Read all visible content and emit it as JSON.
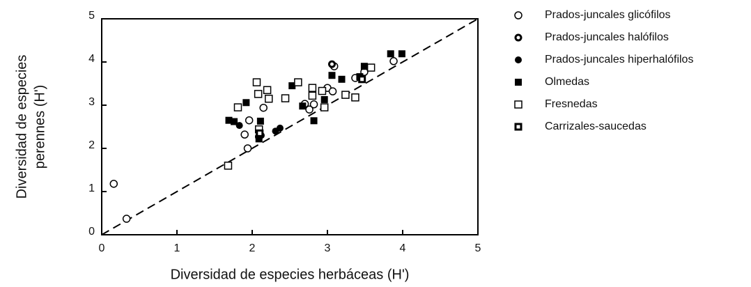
{
  "chart_data": {
    "type": "scatter",
    "xlabel": "Diversidad de especies herbáceas (H')",
    "ylabel": [
      "Diversidad de especies",
      "perennes (H')"
    ],
    "xlim": [
      0,
      5
    ],
    "ylim": [
      0,
      5
    ],
    "xticks": [
      0,
      1,
      2,
      3,
      4,
      5
    ],
    "yticks": [
      0,
      1,
      2,
      3,
      4,
      5
    ],
    "identity_line": true,
    "series": [
      {
        "name": "Prados-juncales glicófilos",
        "marker": "circle-open",
        "color": "#000",
        "x": [
          0.16,
          0.33,
          1.94,
          1.9,
          1.96,
          2.15,
          2.09,
          2.82,
          2.7,
          2.76,
          3.0,
          3.07,
          3.09,
          3.37,
          3.49,
          3.88
        ],
        "y": [
          1.18,
          0.37,
          2.0,
          2.32,
          2.65,
          2.94,
          2.27,
          3.02,
          3.03,
          2.9,
          3.4,
          3.32,
          3.9,
          3.63,
          3.77,
          4.02
        ]
      },
      {
        "name": "Prados-juncales halófilos",
        "marker": "circle-ring",
        "color": "#000",
        "x": [
          3.06
        ],
        "y": [
          3.95
        ]
      },
      {
        "name": "Prados-juncales hiperhalófilos",
        "marker": "circle-filled",
        "color": "#000",
        "x": [
          1.83,
          2.31,
          2.37,
          2.12
        ],
        "y": [
          2.53,
          2.4,
          2.47,
          2.3
        ]
      },
      {
        "name": "Olmedas",
        "marker": "square-filled",
        "color": "#000",
        "x": [
          1.69,
          1.76,
          1.92,
          2.11,
          2.09,
          2.53,
          2.67,
          2.82,
          2.96,
          3.06,
          3.19,
          3.43,
          3.49,
          3.84,
          3.99
        ],
        "y": [
          2.65,
          2.62,
          3.06,
          2.63,
          2.22,
          3.45,
          2.98,
          2.64,
          3.13,
          3.69,
          3.6,
          3.66,
          3.9,
          4.19,
          4.19
        ]
      },
      {
        "name": "Fresnedas",
        "marker": "square-open",
        "color": "#000",
        "x": [
          1.68,
          1.81,
          2.06,
          2.2,
          2.22,
          2.08,
          2.09,
          2.44,
          2.61,
          2.8,
          2.8,
          2.96,
          2.93,
          3.24,
          3.37,
          3.58
        ],
        "y": [
          1.6,
          2.95,
          3.53,
          3.35,
          3.15,
          3.26,
          2.44,
          3.16,
          3.53,
          3.4,
          3.22,
          2.95,
          3.33,
          3.24,
          3.18,
          3.87
        ]
      },
      {
        "name": "Carrizales-saucedas",
        "marker": "square-ring",
        "color": "#000",
        "x": [
          2.1,
          3.46
        ],
        "y": [
          2.35,
          3.6
        ]
      }
    ]
  }
}
